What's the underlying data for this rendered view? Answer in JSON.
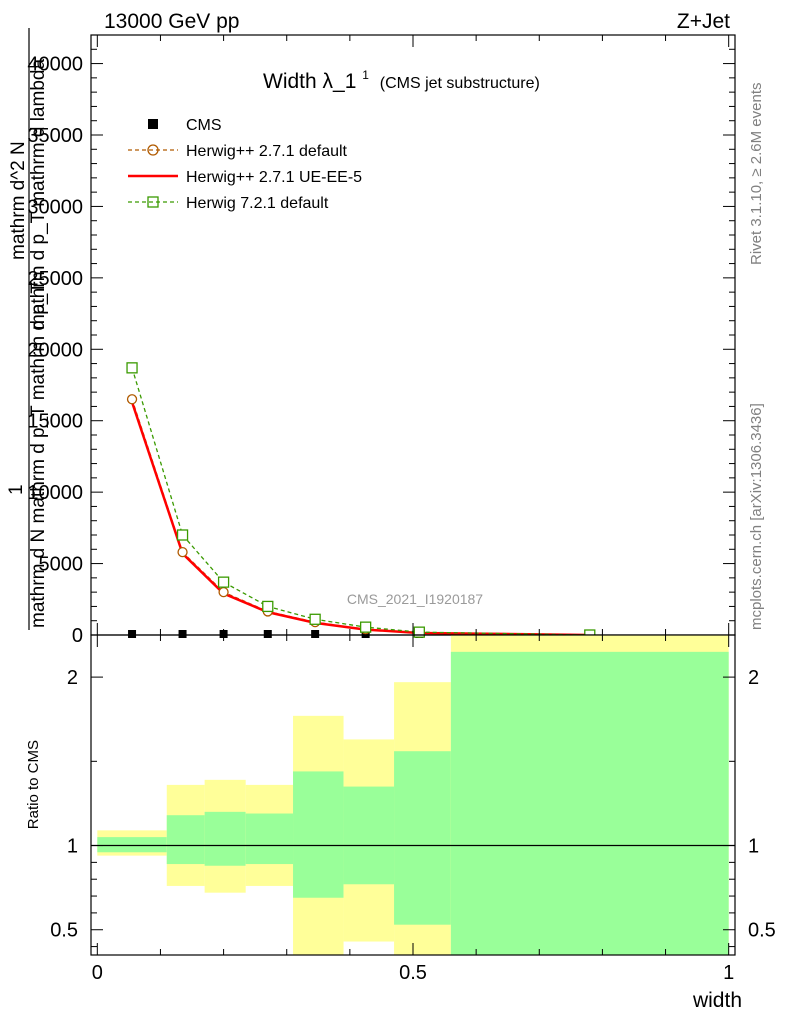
{
  "header": {
    "energy_label": "13000 GeV pp",
    "process_label": "Z+Jet"
  },
  "side": {
    "rivet_label": "Rivet 3.1.10, ≥ 2.6M events",
    "mcplots_label": "mcplots.cern.ch [arXiv:1306.3436]"
  },
  "colors": {
    "cms": "#000000",
    "herwig_default": "#b05a00",
    "herwig_ueee5": "#ff0000",
    "herwig72": "#3a9a00",
    "band_inner": "#99ff99",
    "band_outer": "#ffff99"
  },
  "chart_data": [
    {
      "type": "line",
      "title": "Width λ_1",
      "title_superscript": "1",
      "subtitle": "(CMS jet substructure)",
      "analysis_label": "CMS_2021_I1920187",
      "ylabel_numerator": "1",
      "ylabel_denominator": "mathrm d N mathrm d p_T mathrm d p_T",
      "ylabel_top": "mathrm d^2 N",
      "ylabel_top_2": "mathrm d p_T mathrm d lambda",
      "xlim": [
        -0.01,
        1.01
      ],
      "ylim": [
        0,
        42000
      ],
      "y_ticks": [
        0,
        5000,
        10000,
        15000,
        20000,
        25000,
        30000,
        35000,
        40000
      ],
      "y_tick_labels": [
        "0",
        "5000",
        "10000",
        "15000",
        "20000",
        "25000",
        "30000",
        "35000",
        "40000"
      ],
      "legend": "top-left",
      "series": [
        {
          "name": "CMS",
          "marker": "square-filled",
          "x": [
            0.055,
            0.135,
            0.2,
            0.27,
            0.345,
            0.425,
            0.51,
            0.78
          ],
          "y": [
            0,
            0,
            0,
            0,
            0,
            0,
            0,
            0
          ]
        },
        {
          "name": "Herwig++ 2.7.1 default",
          "marker": "circle-open",
          "dashed": true,
          "x": [
            0.055,
            0.135,
            0.2,
            0.27,
            0.345,
            0.425,
            0.51,
            0.78
          ],
          "y": [
            16500,
            5800,
            3000,
            1650,
            900,
            400,
            150,
            0
          ]
        },
        {
          "name": "Herwig++ 2.7.1 UE-EE-5",
          "marker": "none",
          "dashed": false,
          "x": [
            0.055,
            0.135,
            0.2,
            0.27,
            0.345,
            0.425,
            0.51,
            0.78
          ],
          "y": [
            16300,
            5700,
            2900,
            1600,
            850,
            380,
            140,
            0
          ]
        },
        {
          "name": "Herwig 7.2.1 default",
          "marker": "square-open",
          "dashed": true,
          "x": [
            0.055,
            0.135,
            0.2,
            0.27,
            0.345,
            0.425,
            0.51,
            0.78
          ],
          "y": [
            18700,
            7000,
            3700,
            2000,
            1100,
            550,
            200,
            0
          ]
        }
      ]
    },
    {
      "type": "area",
      "ylabel": "Ratio to CMS",
      "xlabel": "width",
      "xlim": [
        -0.01,
        1.01
      ],
      "ylim": [
        0.35,
        2.25
      ],
      "y_ticks": [
        0.5,
        1,
        2
      ],
      "y_tick_labels": [
        "0.5",
        "1",
        "2"
      ],
      "x_ticks": [
        0,
        0.5,
        1
      ],
      "x_tick_labels": [
        "0",
        "0.5",
        "1"
      ],
      "reference_line": 1,
      "bins": [
        {
          "x0": 0.0,
          "x1": 0.11,
          "inner_lo": 0.96,
          "inner_hi": 1.05,
          "outer_lo": 0.94,
          "outer_hi": 1.09
        },
        {
          "x0": 0.11,
          "x1": 0.17,
          "inner_lo": 0.89,
          "inner_hi": 1.18,
          "outer_lo": 0.76,
          "outer_hi": 1.36
        },
        {
          "x0": 0.17,
          "x1": 0.235,
          "inner_lo": 0.88,
          "inner_hi": 1.2,
          "outer_lo": 0.72,
          "outer_hi": 1.39
        },
        {
          "x0": 0.235,
          "x1": 0.31,
          "inner_lo": 0.89,
          "inner_hi": 1.19,
          "outer_lo": 0.76,
          "outer_hi": 1.36
        },
        {
          "x0": 0.31,
          "x1": 0.39,
          "inner_lo": 0.69,
          "inner_hi": 1.44,
          "outer_lo": 0.35,
          "outer_hi": 1.77
        },
        {
          "x0": 0.39,
          "x1": 0.47,
          "inner_lo": 0.77,
          "inner_hi": 1.35,
          "outer_lo": 0.43,
          "outer_hi": 1.63
        },
        {
          "x0": 0.47,
          "x1": 0.56,
          "inner_lo": 0.53,
          "inner_hi": 1.56,
          "outer_lo": 0.35,
          "outer_hi": 1.97
        },
        {
          "x0": 0.56,
          "x1": 1.0,
          "inner_lo": 0.35,
          "inner_hi": 2.15,
          "outer_lo": 0.35,
          "outer_hi": 2.25
        }
      ]
    }
  ]
}
